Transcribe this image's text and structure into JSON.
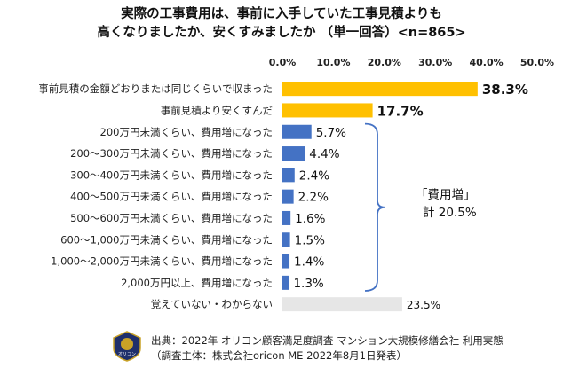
{
  "title_lines": [
    "実際の工事費用は、事前に入手していた工事見積よりも",
    "高くなりましたか、安くすみましたか （単一回答）<n=865>"
  ],
  "chart_data": {
    "type": "bar",
    "orientation": "horizontal",
    "categories": [
      "事前見積の金額どおりまたは同じくらいで収まった",
      "事前見積より安くすんだ",
      "200万円未満くらい、費用増になった",
      "200～300万円未満くらい、費用増になった",
      "300～400万円未満くらい、費用増になった",
      "400～500万円未満くらい、費用増になった",
      "500～600万円未満くらい、費用増になった",
      "600～1,000万円未満くらい、費用増になった",
      "1,000～2,000万円未満くらい、費用増になった",
      "2,000万円以上、費用増になった",
      "覚えていない・わからない"
    ],
    "values": [
      38.3,
      17.7,
      5.7,
      4.4,
      2.4,
      2.2,
      1.6,
      1.5,
      1.4,
      1.3,
      23.5
    ],
    "value_labels": [
      "38.3%",
      "17.7%",
      "5.7%",
      "4.4%",
      "2.4%",
      "2.2%",
      "1.6%",
      "1.5%",
      "1.4%",
      "1.3%",
      "23.5%"
    ],
    "bar_groups": [
      "top",
      "top",
      "increase",
      "increase",
      "increase",
      "increase",
      "increase",
      "increase",
      "increase",
      "increase",
      "unknown"
    ],
    "colors": {
      "top": "#FFC000",
      "increase": "#4472C4",
      "unknown": "#E6E6E6",
      "bracket": "#4472C4"
    },
    "xlim": [
      0,
      50
    ],
    "tick_labels": [
      "0.0%",
      "10.0%",
      "20.0%",
      "30.0%",
      "40.0%",
      "50.0%"
    ],
    "tick_values": [
      0,
      10,
      20,
      30,
      40,
      50
    ],
    "annotation": {
      "line1": "「費用増」",
      "line2": "計 20.5%"
    }
  },
  "source_lines": [
    "出典：2022年 オリコン顧客満足度調査 マンション大規模修繕会社 利用実態",
    "（調査主体：株式会社oricon ME 2022年8月1日発表）"
  ],
  "logo_text": "オリコン"
}
